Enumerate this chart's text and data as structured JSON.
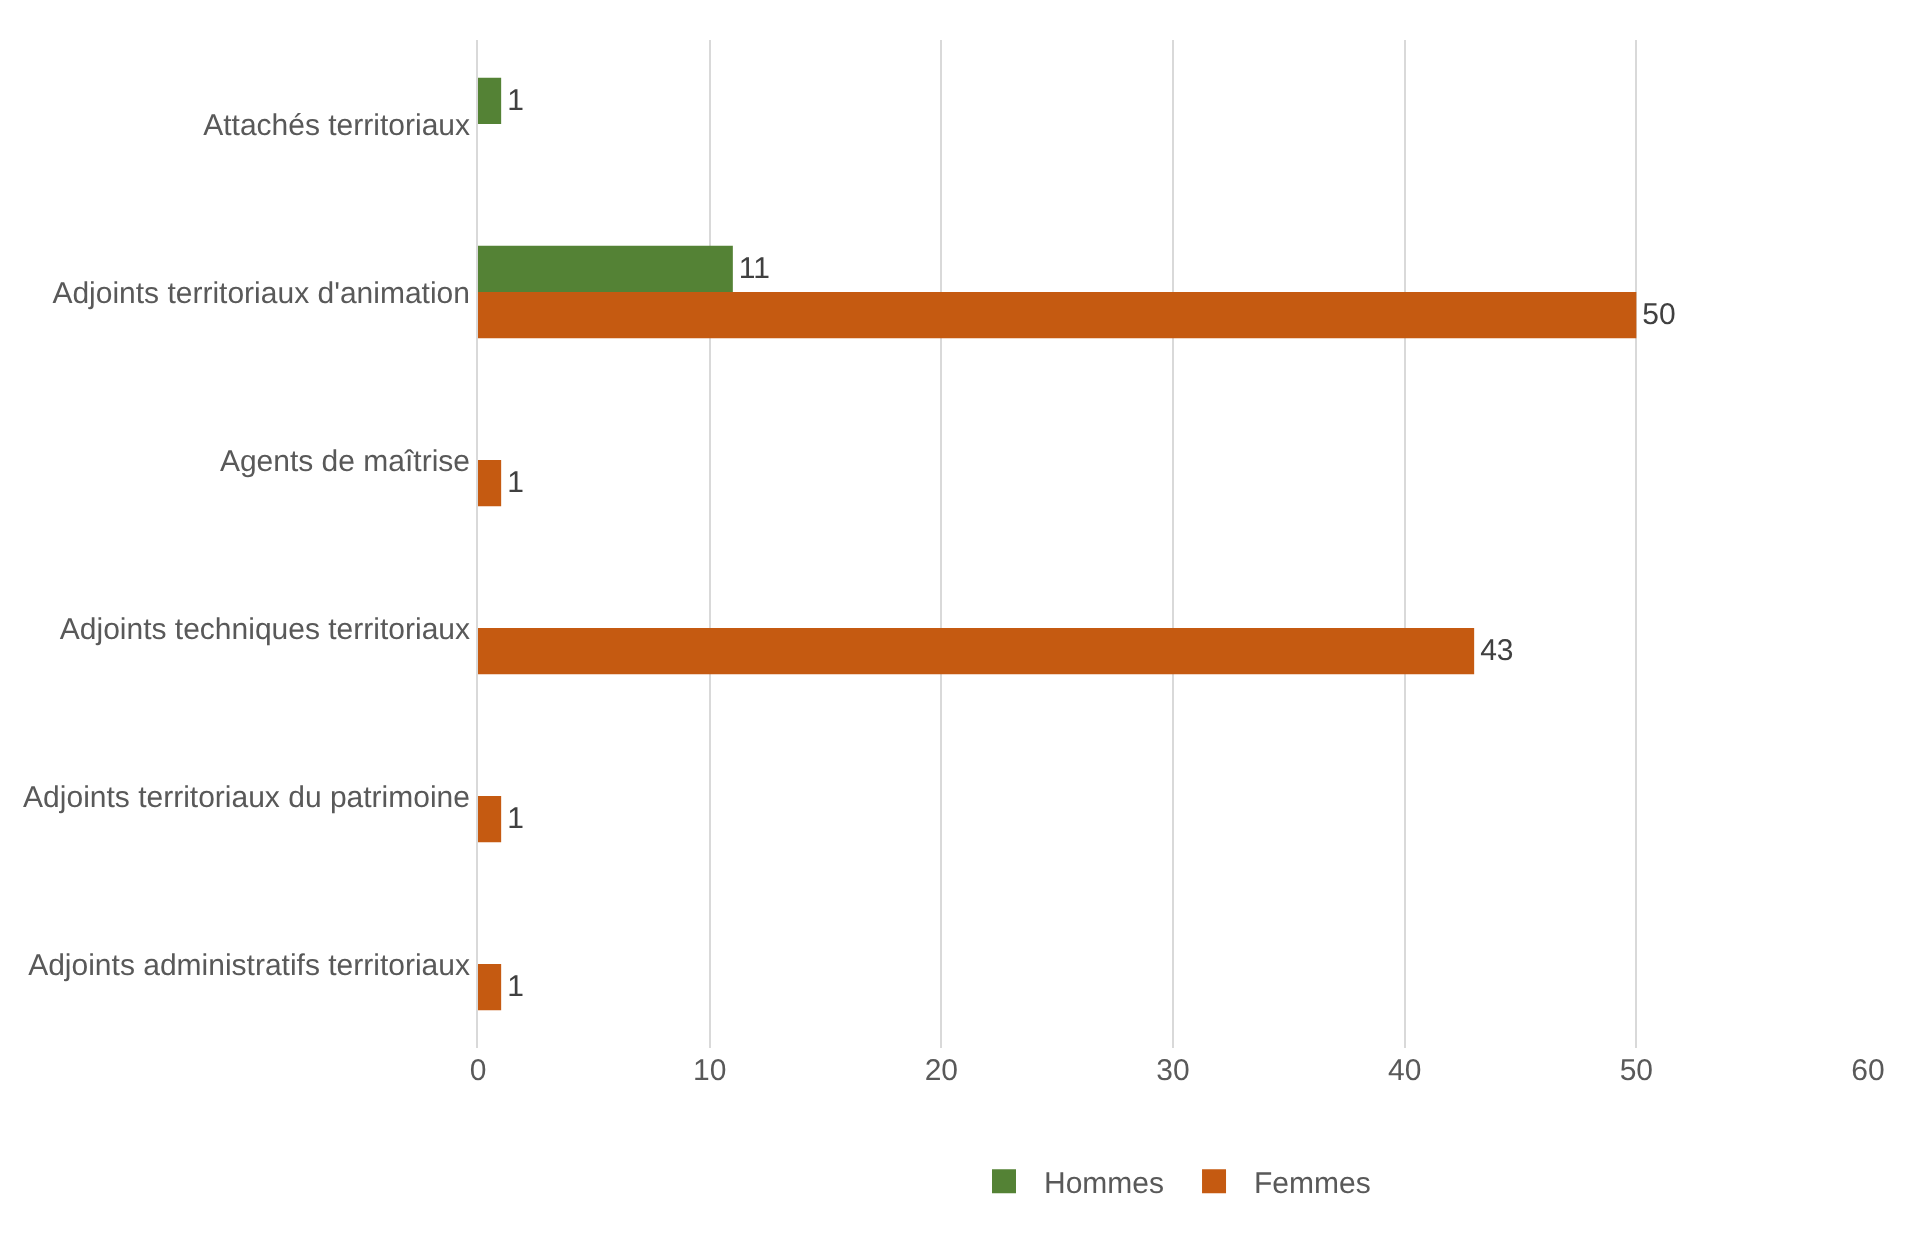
{
  "chart_data": {
    "type": "bar",
    "orientation": "horizontal",
    "categories": [
      "Attachés territoriaux",
      "Adjoints territoriaux d'animation",
      "Agents de maîtrise",
      "Adjoints techniques territoriaux",
      "Adjoints territoriaux du patrimoine",
      "Adjoints administratifs territoriaux"
    ],
    "series": [
      {
        "name": "Hommes",
        "color": "#548235",
        "values": [
          1,
          11,
          null,
          null,
          null,
          null
        ]
      },
      {
        "name": "Femmes",
        "color": "#c55a11",
        "values": [
          null,
          50,
          1,
          43,
          1,
          1
        ]
      }
    ],
    "xlim": [
      0,
      60
    ],
    "xticks": [
      0,
      10,
      20,
      30,
      40,
      50,
      60
    ],
    "grid": "x",
    "legend": "bottom",
    "data_labels": true
  }
}
